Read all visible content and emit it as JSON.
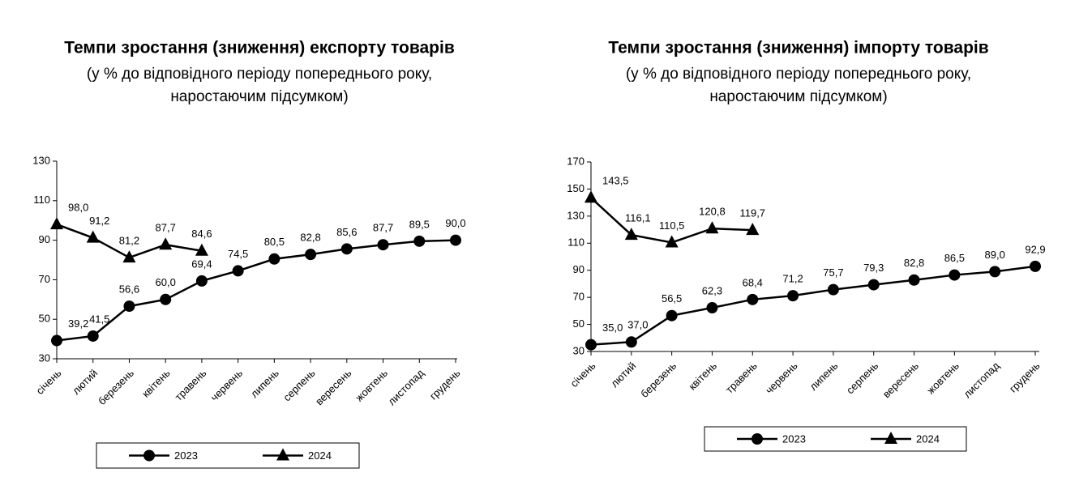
{
  "chart_data": [
    {
      "type": "line",
      "title": "Темпи зростання (зниження) експорту товарів",
      "subtitle": [
        "(у % до відповідного періоду попереднього року,",
        "наростаючим підсумком)"
      ],
      "categories": [
        "січень",
        "лютий",
        "березень",
        "квітень",
        "травень",
        "червень",
        "липень",
        "серпень",
        "вересень",
        "жовтень",
        "листопад",
        "грудень"
      ],
      "series": [
        {
          "name": "2023",
          "color": "#000000",
          "marker": "circle",
          "values": [
            39.2,
            41.5,
            56.6,
            60.0,
            69.4,
            74.5,
            80.5,
            82.8,
            85.6,
            87.7,
            89.5,
            90.0
          ],
          "value_labels": [
            "39,2",
            "41,5",
            "56,6",
            "60,0",
            "69,4",
            "74,5",
            "80,5",
            "82,8",
            "85,6",
            "87,7",
            "89,5",
            "90,0"
          ]
        },
        {
          "name": "2024",
          "color": "#000000",
          "marker": "triangle",
          "values": [
            98.0,
            91.2,
            81.2,
            87.7,
            84.6,
            null,
            null,
            null,
            null,
            null,
            null,
            null
          ],
          "value_labels": [
            "98,0",
            "91,2",
            "81,2",
            "87,7",
            "84,6",
            null,
            null,
            null,
            null,
            null,
            null,
            null
          ]
        }
      ],
      "ylim": [
        30,
        130
      ],
      "yticks": [
        30,
        50,
        70,
        90,
        110,
        130
      ],
      "legend": "bottom"
    },
    {
      "type": "line",
      "title": "Темпи зростання (зниження) імпорту товарів",
      "subtitle": [
        "(у % до відповідного періоду попереднього року,",
        "наростаючим підсумком)"
      ],
      "categories": [
        "січень",
        "лютий",
        "березень",
        "квітень",
        "травень",
        "червень",
        "липень",
        "серпень",
        "вересень",
        "жовтень",
        "листопад",
        "грудень"
      ],
      "series": [
        {
          "name": "2023",
          "color": "#000000",
          "marker": "circle",
          "values": [
            35.0,
            37.0,
            56.5,
            62.3,
            68.4,
            71.2,
            75.7,
            79.3,
            82.8,
            86.5,
            89.0,
            92.9
          ],
          "value_labels": [
            "35,0",
            "37,0",
            "56,5",
            "62,3",
            "68,4",
            "71,2",
            "75,7",
            "79,3",
            "82,8",
            "86,5",
            "89,0",
            "92,9"
          ]
        },
        {
          "name": "2024",
          "color": "#000000",
          "marker": "triangle",
          "values": [
            143.5,
            116.1,
            110.5,
            120.8,
            119.7,
            null,
            null,
            null,
            null,
            null,
            null,
            null
          ],
          "value_labels": [
            "143,5",
            "116,1",
            "110,5",
            "120,8",
            "119,7",
            null,
            null,
            null,
            null,
            null,
            null,
            null
          ]
        }
      ],
      "ylim": [
        30,
        170
      ],
      "yticks": [
        30,
        50,
        70,
        90,
        110,
        130,
        150,
        170
      ],
      "legend": "bottom"
    }
  ]
}
